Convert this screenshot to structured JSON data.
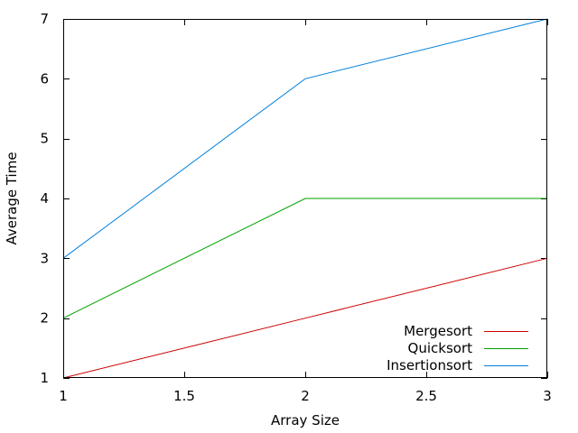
{
  "chart_data": {
    "type": "line",
    "title": "",
    "xlabel": "Array Size",
    "ylabel": "Average Time",
    "xlim": [
      1,
      3
    ],
    "ylim": [
      1,
      7
    ],
    "x_ticks": [
      "1",
      "1.5",
      "2",
      "2.5",
      "3"
    ],
    "y_ticks": [
      "1",
      "2",
      "3",
      "4",
      "5",
      "6",
      "7"
    ],
    "grid": false,
    "legend_position": "bottom-right",
    "x": [
      1,
      2,
      3
    ],
    "series": [
      {
        "name": "Mergesort",
        "color": "#cc0000",
        "values": [
          1,
          2,
          3
        ]
      },
      {
        "name": "Quicksort",
        "color": "#00a000",
        "values": [
          2,
          4,
          4
        ]
      },
      {
        "name": "Insertionsort",
        "color": "#0080dd",
        "values": [
          3,
          6,
          7
        ]
      }
    ]
  }
}
